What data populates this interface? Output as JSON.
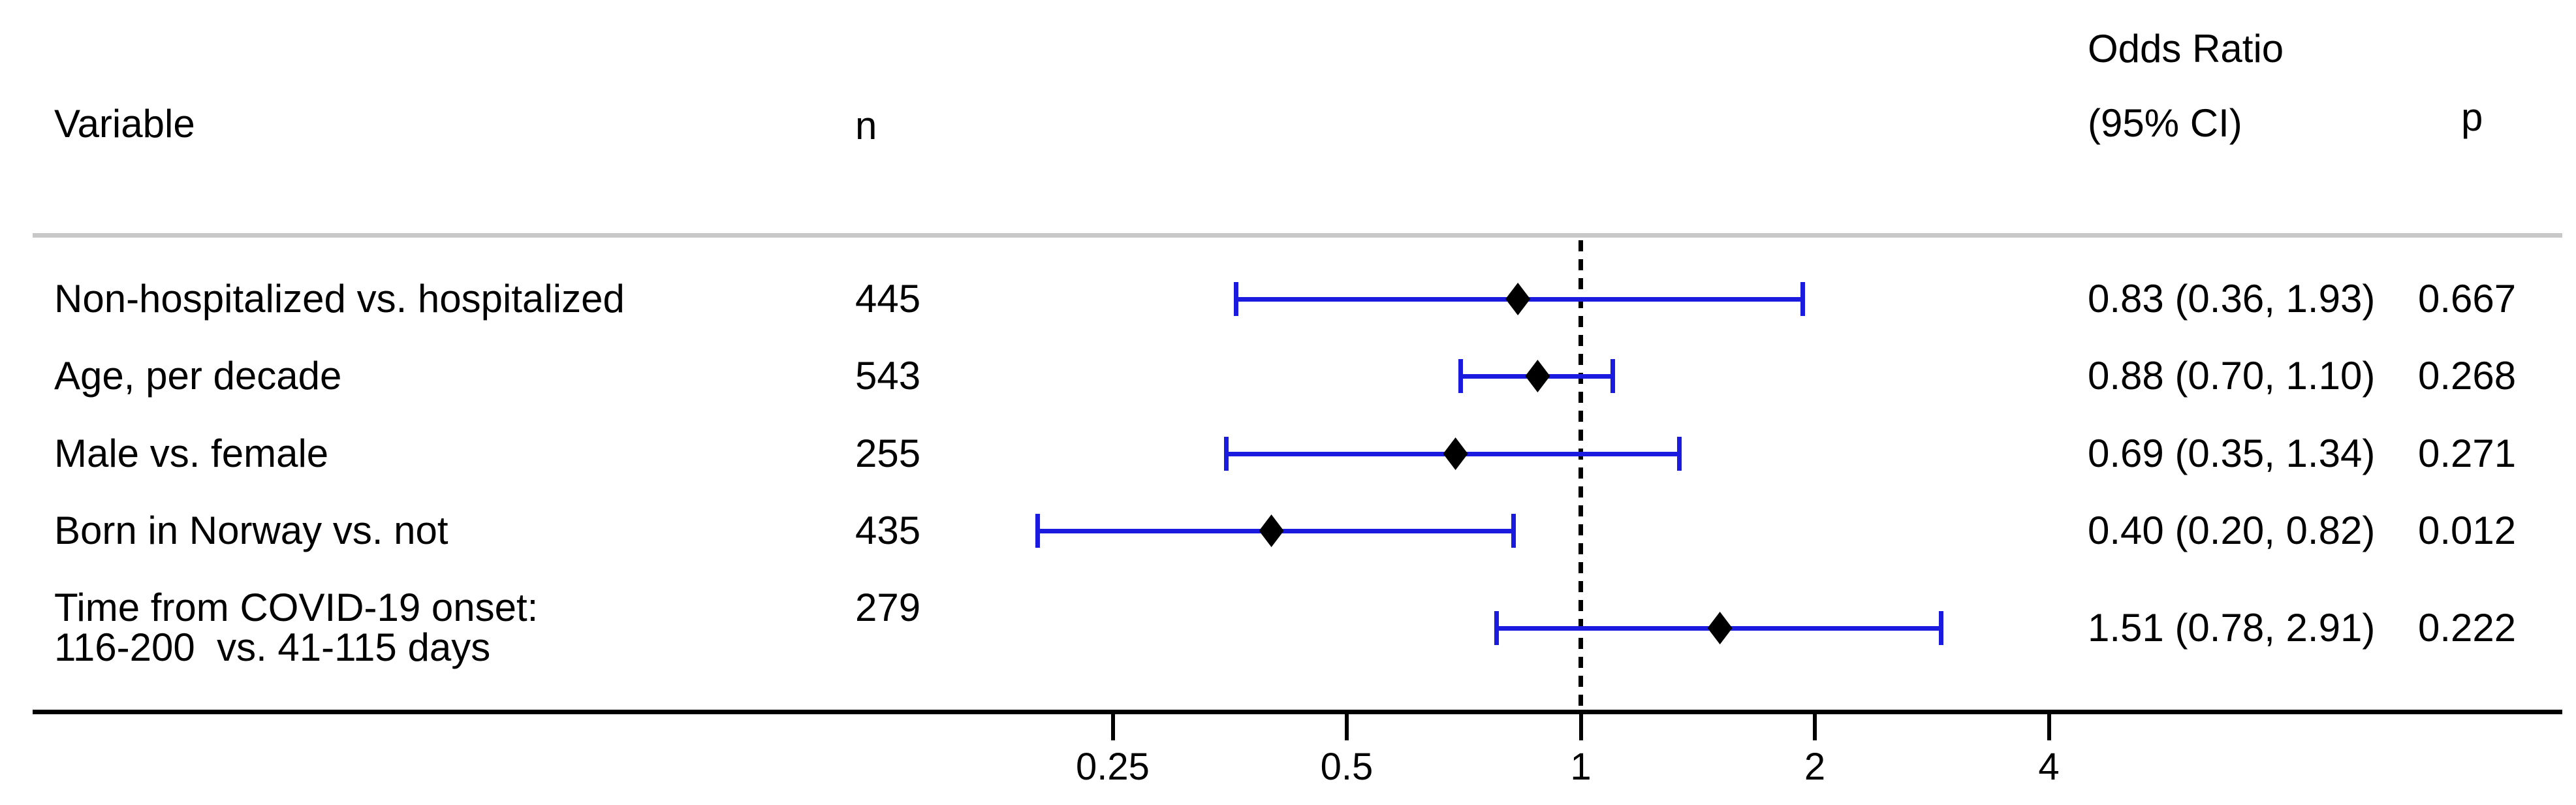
{
  "chart_data": {
    "type": "scatter",
    "subtype": "forest-plot",
    "title": "",
    "columns": {
      "variable": "Variable",
      "n": "n",
      "or_header_line1": "Odds Ratio",
      "or_header_line2": "(95% CI)",
      "p": "p"
    },
    "rows": [
      {
        "variable": "Non-hospitalized vs. hospitalized",
        "variable_line2": "",
        "n": "445",
        "or": 0.83,
        "ci_low": 0.36,
        "ci_high": 1.93,
        "or_ci_text": "0.83 (0.36, 1.93)",
        "p": "0.667"
      },
      {
        "variable": "Age, per decade",
        "variable_line2": "",
        "n": "543",
        "or": 0.88,
        "ci_low": 0.7,
        "ci_high": 1.1,
        "or_ci_text": "0.88 (0.70, 1.10)",
        "p": "0.268"
      },
      {
        "variable": "Male vs. female",
        "variable_line2": "",
        "n": "255",
        "or": 0.69,
        "ci_low": 0.35,
        "ci_high": 1.34,
        "or_ci_text": "0.69 (0.35, 1.34)",
        "p": "0.271"
      },
      {
        "variable": "Born in Norway vs. not",
        "variable_line2": "",
        "n": "435",
        "or": 0.4,
        "ci_low": 0.2,
        "ci_high": 0.82,
        "or_ci_text": "0.40 (0.20, 0.82)",
        "p": "0.012"
      },
      {
        "variable": "Time from COVID-19 onset:",
        "variable_line2": "116-200  vs. 41-115 days",
        "n": "279",
        "or": 1.51,
        "ci_low": 0.78,
        "ci_high": 2.91,
        "or_ci_text": "1.51 (0.78, 2.91)",
        "p": "0.222"
      }
    ],
    "axis": {
      "scale": "log2",
      "ticks": [
        0.25,
        0.5,
        1,
        2,
        4
      ],
      "tick_labels": [
        "0.25",
        "0.5",
        "1",
        "2",
        "4"
      ],
      "xlim": [
        0.155,
        5.2
      ],
      "reference_line": 1,
      "grid": false,
      "legend": "none"
    },
    "colors": {
      "ci_line": "#1b1be0",
      "marker": "#000000",
      "axis_line": "#000000",
      "reference_line": "#000000",
      "header_divider": "#c8c8c8",
      "text": "#000000",
      "background": "#ffffff"
    }
  }
}
